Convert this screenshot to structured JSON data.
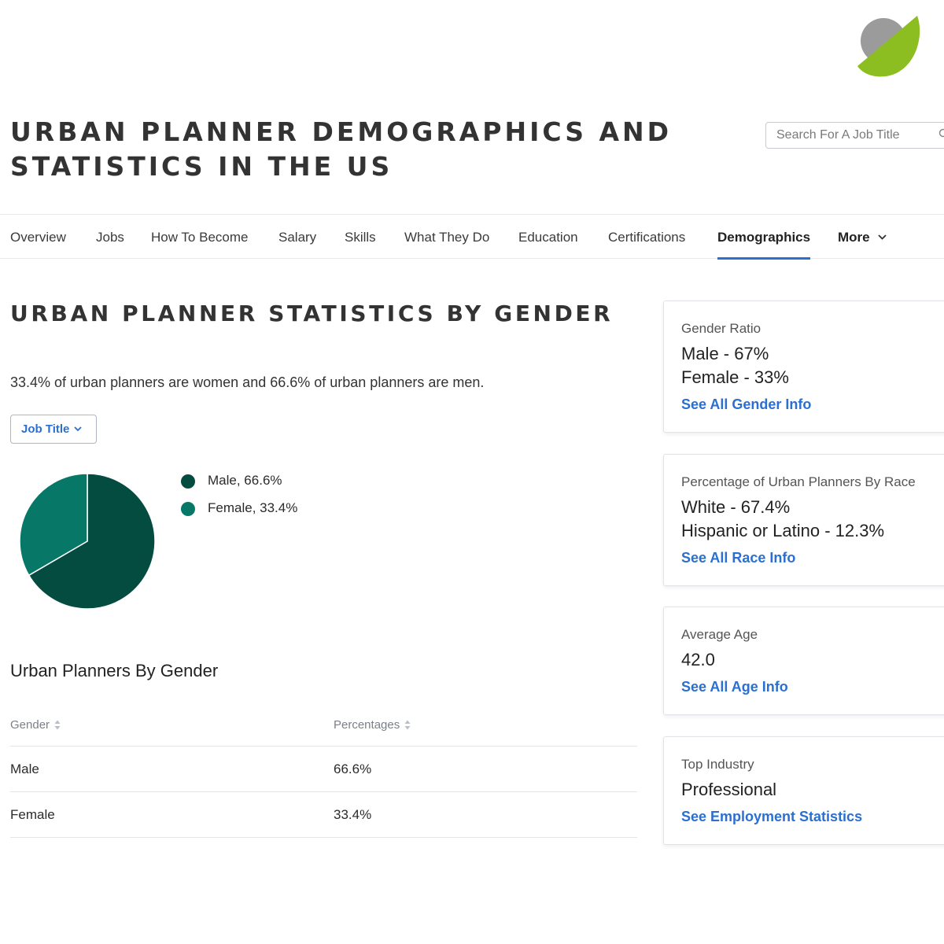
{
  "colors": {
    "accent": "#2b6fcf",
    "male": "#034c3f",
    "female": "#077868",
    "logo_gray": "#9b9b9b",
    "logo_green": "#8cbe22"
  },
  "header": {
    "logo_icon": "logo-icon",
    "page_title": "URBAN PLANNER DEMOGRAPHICS AND STATISTICS IN THE US",
    "search_placeholder": "Search For A Job Title",
    "search_icon": "search-icon"
  },
  "nav": {
    "items": [
      "Overview",
      "Jobs",
      "How To Become",
      "Salary",
      "Skills",
      "What They Do",
      "Education",
      "Certifications",
      "Demographics"
    ],
    "active": "Demographics",
    "more_label": "More"
  },
  "main": {
    "section_title": "URBAN PLANNER STATISTICS BY GENDER",
    "summary": "33.4% of urban planners are women and 66.6% of urban planners are men.",
    "dropdown_label": "Job Title",
    "legend": [
      {
        "label": "Male",
        "value": ", 66.6%"
      },
      {
        "label": "Female",
        "value": ", 33.4%"
      }
    ],
    "table": {
      "title": "Urban Planners By Gender",
      "headers": [
        "Gender",
        "Percentages"
      ],
      "rows": [
        [
          "Male",
          "66.6%"
        ],
        [
          "Female",
          "33.4%"
        ]
      ]
    }
  },
  "chart_data": {
    "type": "pie",
    "labels": [
      "Male",
      "Female"
    ],
    "values": [
      66.6,
      33.4
    ],
    "colors": [
      "#034c3f",
      "#077868"
    ]
  },
  "sidebar": {
    "cards": [
      {
        "label": "Gender Ratio",
        "values": [
          "Male - 67%",
          "Female - 33%"
        ],
        "link": "See All Gender Info"
      },
      {
        "label": "Percentage of Urban Planners By Race",
        "values": [
          "White - 67.4%",
          "Hispanic or Latino - 12.3%"
        ],
        "link": "See All Race Info"
      },
      {
        "label": "Average Age",
        "values": [
          "42.0"
        ],
        "link": "See All Age Info"
      },
      {
        "label": "Top Industry",
        "values": [
          "Professional"
        ],
        "link": "See Employment Statistics"
      }
    ]
  }
}
